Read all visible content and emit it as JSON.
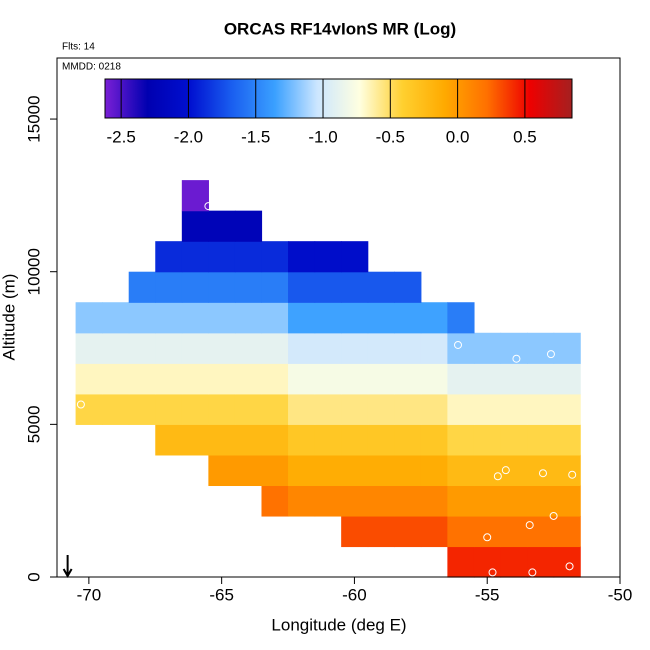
{
  "chart_data": {
    "type": "heatmap",
    "title": "ORCAS RF14vIonS MR (Log)",
    "subtitle": "Flts: 14",
    "annotation": "MMDD: 0218",
    "xlabel": "Longitude (deg E)",
    "ylabel": "Altitude (m)",
    "xlim": [
      -71.2,
      -50
    ],
    "ylim": [
      0,
      17000
    ],
    "xticks": [
      -70,
      -65,
      -60,
      -55,
      -50
    ],
    "yticks": [
      0,
      5000,
      10000,
      15000
    ],
    "x_edges": [
      -70.5,
      -69.5,
      -68.5,
      -67.5,
      -66.5,
      -65.5,
      -64.5,
      -63.5,
      -62.5,
      -61.5,
      -60.5,
      -59.5,
      -58.5,
      -57.5,
      -56.5,
      -55.5,
      -54.5,
      -53.5,
      -52.5,
      -51.5
    ],
    "y_edges": [
      0,
      1000,
      2000,
      3000,
      4000,
      5000,
      6000,
      7000,
      8000,
      9000,
      10000,
      11000,
      12000,
      13000
    ],
    "values": [
      [
        null,
        null,
        null,
        null,
        null,
        null,
        null,
        null,
        null,
        null,
        null,
        null,
        null,
        null,
        0.43,
        0.43,
        0.43,
        0.43,
        0.43
      ],
      [
        null,
        null,
        null,
        null,
        null,
        null,
        null,
        null,
        null,
        null,
        0.32,
        0.32,
        0.32,
        0.32,
        0.21,
        0.21,
        0.21,
        0.21,
        0.21
      ],
      [
        null,
        null,
        null,
        null,
        null,
        null,
        null,
        0.21,
        0.1,
        0.1,
        0.1,
        0.1,
        0.1,
        0.1,
        -0.01,
        -0.01,
        -0.01,
        -0.01,
        -0.01
      ],
      [
        null,
        null,
        null,
        null,
        null,
        -0.01,
        -0.01,
        -0.01,
        -0.12,
        -0.12,
        -0.12,
        -0.12,
        -0.12,
        -0.12,
        -0.23,
        -0.23,
        -0.23,
        -0.23,
        -0.23
      ],
      [
        null,
        null,
        null,
        -0.23,
        -0.23,
        -0.23,
        -0.23,
        -0.23,
        -0.34,
        -0.34,
        -0.34,
        -0.34,
        -0.34,
        -0.34,
        -0.45,
        -0.45,
        -0.45,
        -0.45,
        -0.45
      ],
      [
        -0.45,
        -0.45,
        -0.45,
        -0.45,
        -0.45,
        -0.45,
        -0.45,
        -0.45,
        -0.56,
        -0.56,
        -0.56,
        -0.56,
        -0.56,
        -0.56,
        -0.67,
        -0.67,
        -0.67,
        -0.67,
        -0.67
      ],
      [
        -0.67,
        -0.67,
        -0.67,
        -0.67,
        -0.67,
        -0.67,
        -0.67,
        -0.67,
        -0.78,
        -0.78,
        -0.78,
        -0.78,
        -0.78,
        -0.78,
        -0.89,
        -0.89,
        -0.89,
        -0.89,
        -0.89
      ],
      [
        -0.89,
        -0.89,
        -0.89,
        -0.89,
        -0.89,
        -0.89,
        -0.89,
        -0.89,
        -1.0,
        -1.0,
        -1.0,
        -1.0,
        -1.0,
        -1.0,
        -1.18,
        -1.18,
        -1.18,
        -1.18,
        -1.18
      ],
      [
        -1.18,
        -1.18,
        -1.18,
        -1.18,
        -1.18,
        -1.18,
        -1.18,
        -1.18,
        -1.35,
        -1.35,
        -1.35,
        -1.35,
        -1.35,
        -1.35,
        -1.53,
        null,
        null,
        null,
        null
      ],
      [
        null,
        null,
        -1.53,
        -1.53,
        -1.53,
        -1.53,
        -1.53,
        -1.53,
        -1.7,
        -1.7,
        -1.7,
        -1.7,
        -1.7,
        null,
        null,
        null,
        null,
        null,
        null
      ],
      [
        null,
        null,
        null,
        -1.88,
        -1.88,
        -1.88,
        -1.88,
        -1.88,
        -2.05,
        -2.05,
        -2.05,
        null,
        null,
        null,
        null,
        null,
        null,
        null,
        null
      ],
      [
        null,
        null,
        null,
        null,
        -2.23,
        -2.23,
        -2.23,
        null,
        null,
        null,
        null,
        null,
        null,
        null,
        null,
        null,
        null,
        null,
        null
      ],
      [
        null,
        null,
        null,
        null,
        -2.58,
        null,
        null,
        null,
        null,
        null,
        null,
        null,
        null,
        null,
        null,
        null,
        null,
        null,
        null
      ]
    ],
    "points": {
      "x": [
        -65.5,
        -56.1,
        -53.9,
        -52.6,
        -70.3,
        -54.6,
        -54.3,
        -52.9,
        -51.8,
        -53.4,
        -52.5,
        -55.0,
        -54.8,
        -53.3,
        -51.9
      ],
      "y": [
        12150,
        7600,
        7150,
        7300,
        5650,
        3300,
        3500,
        3400,
        3350,
        1700,
        2000,
        1300,
        150,
        150,
        350
      ],
      "color": "#ffffff"
    },
    "marker_x": -70.8,
    "clim": [
      -2.62,
      0.85
    ],
    "cticks": [
      -2.5,
      {
        "value": -2,
        "label": "-2.0"
      },
      -1.5,
      {
        "value": -1,
        "label": "-1.0"
      },
      -0.5,
      {
        "value": 0,
        "label": "0.0"
      },
      0.5
    ],
    "colorscale": [
      "#7a1fd6",
      "#0000b0",
      "#0010d0",
      "#1a5ff0",
      "#3aa0ff",
      "#cce6ff",
      "#ffffe0",
      "#ffd030",
      "#ffaa00",
      "#ff7000",
      "#ee0000",
      "#a52020"
    ]
  }
}
